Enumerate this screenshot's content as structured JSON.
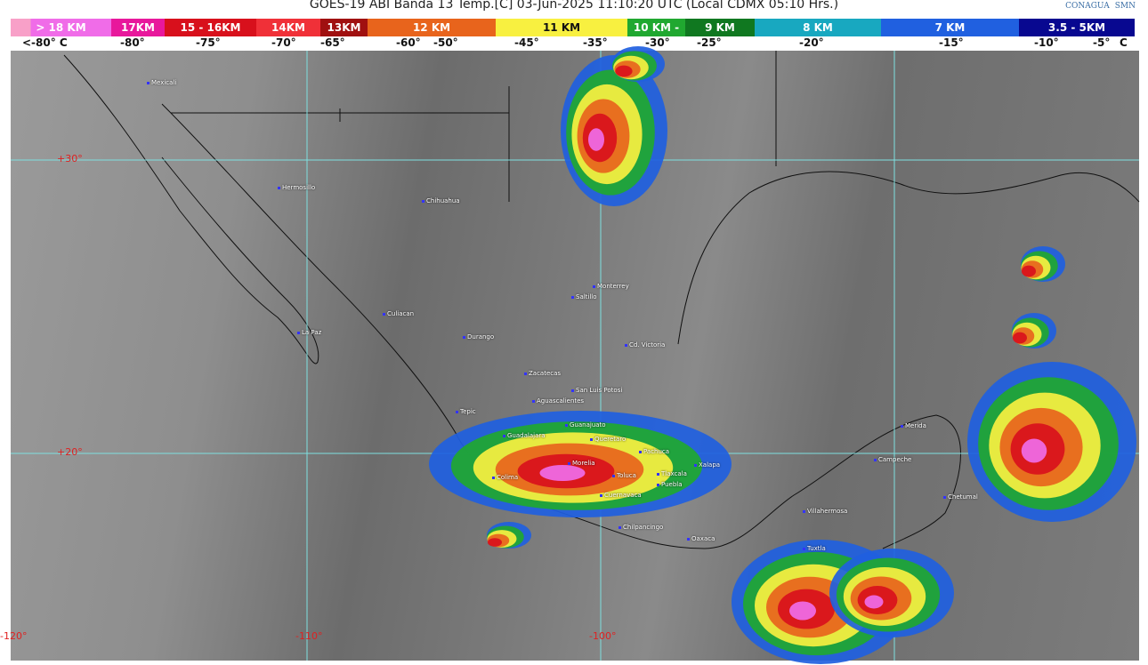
{
  "title": "GOES-19 ABI Banda 13 Temp.[C] 03-Jun-2025 11:10:20 UTC (Local CDMX  05:10 Hrs.)",
  "logos": [
    "CONAGUA",
    "SMN"
  ],
  "legend": [
    {
      "label": "> 18 KM",
      "color": "#f06ce8"
    },
    {
      "label": "17KM",
      "color": "#e8189c"
    },
    {
      "label": "15 - 16KM",
      "color": "#d8101c"
    },
    {
      "label": "14KM",
      "color": "#f03038"
    },
    {
      "label": "13KM",
      "color": "#a01010"
    },
    {
      "label": "12 KM",
      "color": "#e8641c"
    },
    {
      "label": "11 KM",
      "color": "#f8f040"
    },
    {
      "label": "10 KM -",
      "color": "#20a830"
    },
    {
      "label": "9 KM",
      "color": "#107820"
    },
    {
      "label": "8 KM",
      "color": "#18a8c0"
    },
    {
      "label": "7 KM",
      "color": "#2060e0"
    },
    {
      "label": "3.5 - 5KM",
      "color": "#080890"
    }
  ],
  "temps": [
    "<-80° C",
    "-80°",
    "-75°",
    "-70°",
    "-65°",
    "-60°",
    "-50°",
    "-45°",
    "-35°",
    "-30°",
    "-25°",
    "-20°",
    "-15°",
    "-10°",
    "-5°",
    "C"
  ],
  "grid_labels": [
    "+30°",
    "+20°",
    "-120°",
    "-110°",
    "-100°"
  ],
  "cities": [
    "Mexicali",
    "Hermosillo",
    "Chihuahua",
    "Culiacan",
    "La Paz",
    "Durango",
    "Monterrey",
    "Saltillo",
    "Cd. Victoria",
    "Zacatecas",
    "San Luis Potosi",
    "Aguascalientes",
    "Tepic",
    "Guadalajara",
    "Guanajuato",
    "Queretaro",
    "Pachuca",
    "Morelia",
    "Colima",
    "Toluca",
    "Tlaxcala",
    "Xalapa",
    "Cuernavaca",
    "Puebla",
    "Chilpancingo",
    "Oaxaca",
    "Villahermosa",
    "Tuxtla",
    "Campeche",
    "Merida",
    "Chetumal"
  ]
}
